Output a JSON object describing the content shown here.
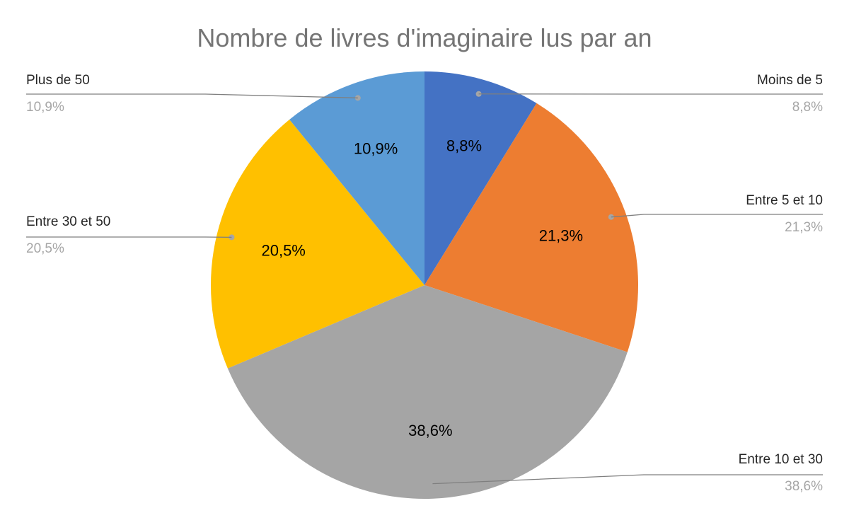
{
  "chart_data": {
    "type": "pie",
    "title": "Nombre de livres d'imaginaire lus par an",
    "slices": [
      {
        "name": "Moins de 5",
        "value": 8.8,
        "label": "8,8%",
        "color": "#4472c4"
      },
      {
        "name": "Entre 5 et 10",
        "value": 21.3,
        "label": "21,3%",
        "color": "#ed7d31"
      },
      {
        "name": "Entre 10 et 30",
        "value": 38.6,
        "label": "38,6%",
        "color": "#a5a5a5"
      },
      {
        "name": "Entre 30 et 50",
        "value": 20.5,
        "label": "20,5%",
        "color": "#ffc000"
      },
      {
        "name": "Plus de 50",
        "value": 10.9,
        "label": "10,9%",
        "color": "#5b9bd5"
      }
    ],
    "start_angle_deg": 0,
    "direction": "clockwise",
    "legend": "callouts"
  }
}
